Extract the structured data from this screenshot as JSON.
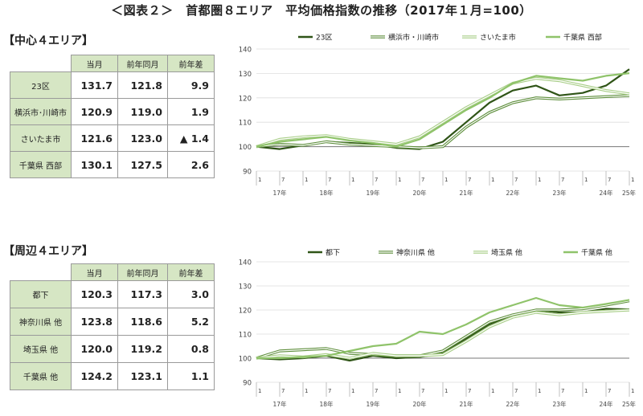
{
  "title": "＜図表２＞　首都圏８エリア　平均価格指数の推移（2017年１月=100）",
  "colors": {
    "dark": "#2f5417",
    "mid": "#5e8e3c",
    "light": "#a7cd86",
    "lighter": "#8fc36a",
    "header_bg": "#d6e6c4"
  },
  "tables": [
    {
      "section_title": "【中心４エリア】",
      "headers": [
        "当月",
        "前年同月",
        "前年差"
      ],
      "rows": [
        {
          "area": "23区",
          "current": "131.7",
          "prev_year": "121.8",
          "diff": "9.9"
        },
        {
          "area": "横浜市･川崎市",
          "current": "120.9",
          "prev_year": "119.0",
          "diff": "1.9"
        },
        {
          "area": "さいたま市",
          "current": "121.6",
          "prev_year": "123.0",
          "diff": "▲ 1.4"
        },
        {
          "area": "千葉県 西部",
          "current": "130.1",
          "prev_year": "127.5",
          "diff": "2.6"
        }
      ]
    },
    {
      "section_title": "【周辺４エリア】",
      "headers": [
        "当月",
        "前年同月",
        "前年差"
      ],
      "rows": [
        {
          "area": "都下",
          "current": "120.3",
          "prev_year": "117.3",
          "diff": "3.0"
        },
        {
          "area": "神奈川県 他",
          "current": "123.8",
          "prev_year": "118.6",
          "diff": "5.2"
        },
        {
          "area": "埼玉県 他",
          "current": "120.0",
          "prev_year": "119.2",
          "diff": "0.8"
        },
        {
          "area": "千葉県 他",
          "current": "124.2",
          "prev_year": "123.1",
          "diff": "1.1"
        }
      ]
    }
  ],
  "chart_data": [
    {
      "type": "line",
      "ylim": [
        90,
        140
      ],
      "yticks": [
        90,
        100,
        110,
        120,
        130,
        140
      ],
      "xlim": [
        "2017-01",
        "2025-01"
      ],
      "month_tick_labels": [
        "1",
        "7"
      ],
      "year_labels": [
        "17年",
        "18年",
        "19年",
        "20年",
        "21年",
        "22年",
        "23年",
        "24年",
        "25年"
      ],
      "last_tick_label": "1",
      "reference_line": 100,
      "legend_position": "top",
      "series": [
        {
          "name": "23区",
          "color": "#2f5417",
          "style": "solid",
          "x": [
            "2017-01",
            "2017-07",
            "2018-01",
            "2018-07",
            "2019-01",
            "2019-07",
            "2020-01",
            "2020-07",
            "2021-01",
            "2021-07",
            "2022-01",
            "2022-07",
            "2023-01",
            "2023-07",
            "2024-01",
            "2024-07",
            "2025-01"
          ],
          "y": [
            100,
            99,
            100.5,
            102,
            101.5,
            101,
            99.5,
            99,
            102,
            110,
            118,
            123,
            125,
            121,
            122,
            125,
            131.7
          ]
        },
        {
          "name": "横浜市・川崎市",
          "color": "#5e8e3c",
          "style": "double",
          "x": [
            "2017-01",
            "2017-07",
            "2018-01",
            "2018-07",
            "2019-01",
            "2019-07",
            "2020-01",
            "2020-07",
            "2021-01",
            "2021-07",
            "2022-01",
            "2022-07",
            "2023-01",
            "2023-07",
            "2024-01",
            "2024-07",
            "2025-01"
          ],
          "y": [
            100,
            101,
            100.5,
            102,
            101,
            100.5,
            100,
            99.5,
            100,
            108,
            114,
            118,
            120,
            119.5,
            120,
            120.5,
            120.9
          ]
        },
        {
          "name": "さいたま市",
          "color": "#a7cd86",
          "style": "double",
          "x": [
            "2017-01",
            "2017-07",
            "2018-01",
            "2018-07",
            "2019-01",
            "2019-07",
            "2020-01",
            "2020-07",
            "2021-01",
            "2021-07",
            "2022-01",
            "2022-07",
            "2023-01",
            "2023-07",
            "2024-01",
            "2024-07",
            "2025-01"
          ],
          "y": [
            100,
            103,
            104,
            104.5,
            103,
            102,
            101,
            104,
            110,
            116,
            121,
            126,
            128,
            127,
            125,
            123,
            121.6
          ]
        },
        {
          "name": "千葉県 西部",
          "color": "#8fc36a",
          "style": "solid",
          "x": [
            "2017-01",
            "2017-07",
            "2018-01",
            "2018-07",
            "2019-01",
            "2019-07",
            "2020-01",
            "2020-07",
            "2021-01",
            "2021-07",
            "2022-01",
            "2022-07",
            "2023-01",
            "2023-07",
            "2024-01",
            "2024-07",
            "2025-01"
          ],
          "y": [
            100,
            102,
            103,
            104,
            102.5,
            101.5,
            100,
            103,
            109,
            115,
            120,
            126,
            129,
            128,
            127,
            129,
            130.1
          ]
        }
      ]
    },
    {
      "type": "line",
      "ylim": [
        90,
        140
      ],
      "yticks": [
        90,
        100,
        110,
        120,
        130,
        140
      ],
      "xlim": [
        "2017-01",
        "2025-01"
      ],
      "month_tick_labels": [
        "1",
        "7"
      ],
      "year_labels": [
        "17年",
        "18年",
        "19年",
        "20年",
        "21年",
        "22年",
        "23年",
        "24年",
        "25年"
      ],
      "last_tick_label": "1",
      "reference_line": 100,
      "legend_position": "top",
      "series": [
        {
          "name": "都下",
          "color": "#2f5417",
          "style": "solid",
          "x": [
            "2017-01",
            "2017-07",
            "2018-01",
            "2018-07",
            "2019-01",
            "2019-07",
            "2020-01",
            "2020-07",
            "2021-01",
            "2021-07",
            "2022-01",
            "2022-07",
            "2023-01",
            "2023-07",
            "2024-01",
            "2024-07",
            "2025-01"
          ],
          "y": [
            100,
            99.5,
            100,
            101,
            99,
            101,
            100,
            100.5,
            102,
            108,
            114,
            118,
            120,
            119,
            119,
            120.5,
            120.3
          ]
        },
        {
          "name": "神奈川県 他",
          "color": "#5e8e3c",
          "style": "double",
          "x": [
            "2017-01",
            "2017-07",
            "2018-01",
            "2018-07",
            "2019-01",
            "2019-07",
            "2020-01",
            "2020-07",
            "2021-01",
            "2021-07",
            "2022-01",
            "2022-07",
            "2023-01",
            "2023-07",
            "2024-01",
            "2024-07",
            "2025-01"
          ],
          "y": [
            100,
            103,
            103.5,
            104,
            102,
            101.5,
            101,
            101,
            103,
            109,
            115,
            118,
            120,
            120,
            120.5,
            122,
            123.8
          ]
        },
        {
          "name": "埼玉県 他",
          "color": "#a7cd86",
          "style": "double",
          "x": [
            "2017-01",
            "2017-07",
            "2018-01",
            "2018-07",
            "2019-01",
            "2019-07",
            "2020-01",
            "2020-07",
            "2021-01",
            "2021-07",
            "2022-01",
            "2022-07",
            "2023-01",
            "2023-07",
            "2024-01",
            "2024-07",
            "2025-01"
          ],
          "y": [
            100,
            101,
            100.5,
            101.5,
            100,
            102,
            101,
            101,
            101.5,
            107,
            113,
            117,
            119,
            118,
            119,
            119.5,
            120.0
          ]
        },
        {
          "name": "千葉県 他",
          "color": "#8fc36a",
          "style": "solid",
          "x": [
            "2017-01",
            "2017-07",
            "2018-01",
            "2018-07",
            "2019-01",
            "2019-07",
            "2020-01",
            "2020-07",
            "2021-01",
            "2021-07",
            "2022-01",
            "2022-07",
            "2023-01",
            "2023-07",
            "2024-01",
            "2024-07",
            "2025-01"
          ],
          "y": [
            100,
            100,
            100.5,
            101,
            103,
            105,
            106,
            111,
            110,
            114,
            119,
            122,
            125,
            122,
            121,
            122.5,
            124.2
          ]
        }
      ]
    }
  ]
}
